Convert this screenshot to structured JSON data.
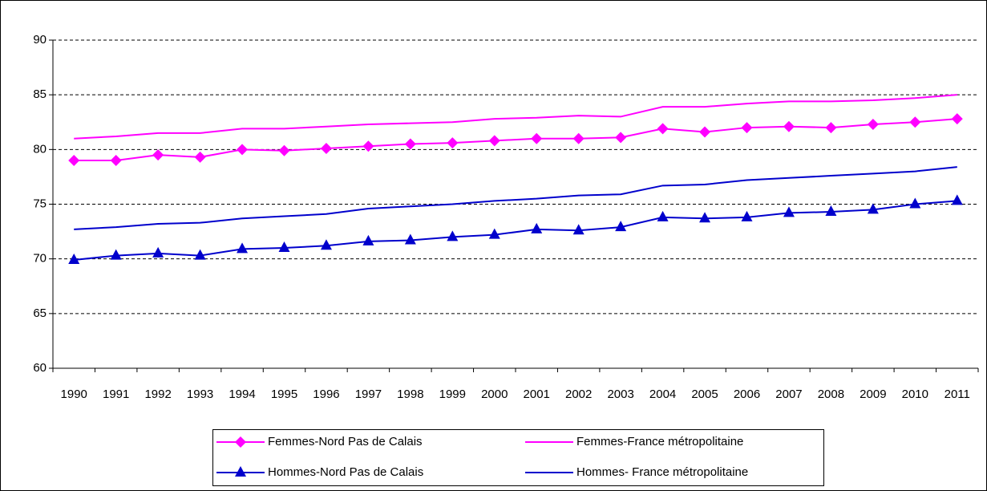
{
  "chart_data": {
    "type": "line",
    "categories": [
      "1990",
      "1991",
      "1992",
      "1993",
      "1994",
      "1995",
      "1996",
      "1997",
      "1998",
      "1999",
      "2000",
      "2001",
      "2002",
      "2003",
      "2004",
      "2005",
      "2006",
      "2007",
      "2008",
      "2009",
      "2010",
      "2011"
    ],
    "series": [
      {
        "name": "Femmes-Nord Pas de Calais",
        "color": "#ff00ff",
        "marker": "diamond",
        "values": [
          79.0,
          79.0,
          79.5,
          79.3,
          80.0,
          79.9,
          80.1,
          80.3,
          80.5,
          80.6,
          80.8,
          81.0,
          81.0,
          81.1,
          81.9,
          81.6,
          82.0,
          82.1,
          82.0,
          82.3,
          82.5,
          82.8
        ]
      },
      {
        "name": "Femmes-France métropolitaine",
        "color": "#ff00ff",
        "values": [
          81.0,
          81.2,
          81.5,
          81.5,
          81.9,
          81.9,
          82.1,
          82.3,
          82.4,
          82.5,
          82.8,
          82.9,
          83.1,
          83.0,
          83.9,
          83.9,
          84.2,
          84.4,
          84.4,
          84.5,
          84.7,
          85.0
        ]
      },
      {
        "name": "Hommes-Nord Pas de Calais",
        "color": "#0000cc",
        "marker": "triangle",
        "values": [
          69.9,
          70.3,
          70.5,
          70.3,
          70.9,
          71.0,
          71.2,
          71.6,
          71.7,
          72.0,
          72.2,
          72.7,
          72.6,
          72.9,
          73.8,
          73.7,
          73.8,
          74.2,
          74.3,
          74.5,
          75.0,
          75.3
        ]
      },
      {
        "name": "Hommes- France métropolitaine",
        "color": "#0000cc",
        "values": [
          72.7,
          72.9,
          73.2,
          73.3,
          73.7,
          73.9,
          74.1,
          74.6,
          74.8,
          75.0,
          75.3,
          75.5,
          75.8,
          75.9,
          76.7,
          76.8,
          77.2,
          77.4,
          77.6,
          77.8,
          78.0,
          78.4
        ]
      }
    ],
    "ylim": [
      60,
      90
    ],
    "yticks": [
      60,
      65,
      70,
      75,
      80,
      85,
      90
    ],
    "grid": true,
    "legend": "bottom"
  }
}
